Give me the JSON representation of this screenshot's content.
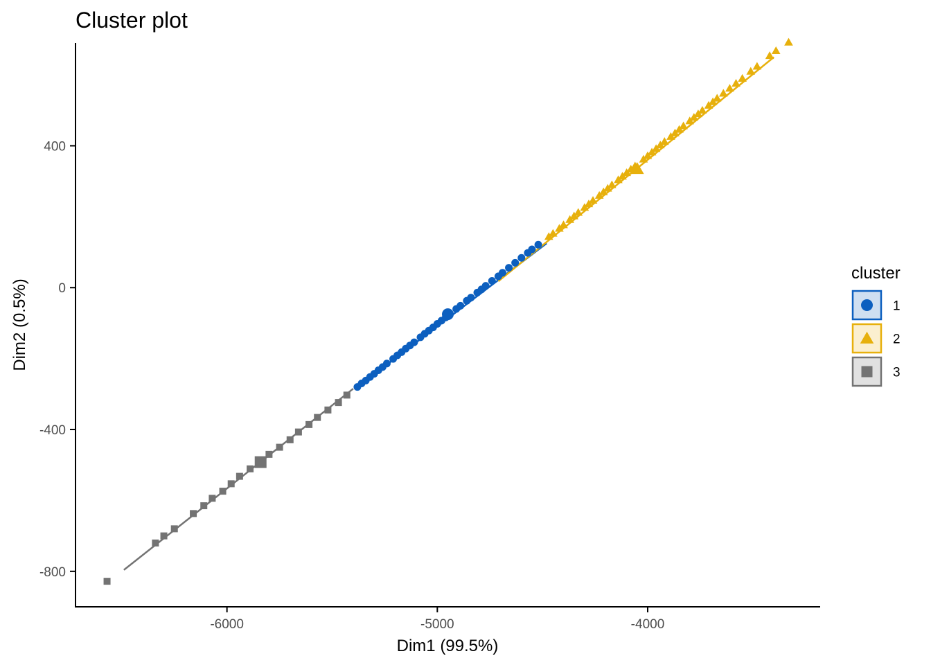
{
  "chart_data": {
    "type": "scatter",
    "title": "Cluster plot",
    "xlabel": "Dim1 (99.5%)",
    "ylabel": "Dim2 (0.5%)",
    "xlim": [
      -6720,
      -3180
    ],
    "ylim": [
      -900,
      690
    ],
    "x_ticks": [
      -6000,
      -5000,
      -4000
    ],
    "x_tick_labels": [
      "-6000",
      "-5000",
      "-4000"
    ],
    "y_ticks": [
      -800,
      -400,
      0,
      400
    ],
    "y_tick_labels": [
      "-800",
      "-400",
      "0",
      "400"
    ],
    "grid": false,
    "legend": {
      "title": "cluster",
      "position": "right"
    },
    "series": [
      {
        "name": "1",
        "color": "#0c5fbf",
        "fill": "#cfdff1",
        "shape": "circle",
        "centroid": [
          -4950,
          -75
        ],
        "fit_segment": [
          [
            -5390,
            -285
          ],
          [
            -4480,
            125
          ]
        ],
        "x": [
          -5380,
          -5360,
          -5340,
          -5320,
          -5300,
          -5280,
          -5260,
          -5240,
          -5210,
          -5190,
          -5170,
          -5150,
          -5130,
          -5110,
          -5080,
          -5060,
          -5040,
          -5020,
          -5000,
          -4980,
          -4960,
          -4940,
          -4910,
          -4890,
          -4860,
          -4840,
          -4810,
          -4790,
          -4770,
          -4740,
          -4710,
          -4690,
          -4660,
          -4630,
          -4600,
          -4570,
          -4550,
          -4520
        ],
        "y": [
          -280,
          -270,
          -262,
          -252,
          -243,
          -233,
          -224,
          -214,
          -201,
          -191,
          -182,
          -172,
          -163,
          -154,
          -140,
          -130,
          -121,
          -112,
          -102,
          -93,
          -84,
          -74,
          -60,
          -51,
          -37,
          -28,
          -14,
          -5,
          5,
          19,
          32,
          42,
          56,
          70,
          84,
          98,
          108,
          121
        ]
      },
      {
        "name": "2",
        "color": "#e7b00c",
        "fill": "#fbefcf",
        "shape": "triangle",
        "centroid": [
          -4050,
          335
        ],
        "fit_segment": [
          [
            -4710,
            18
          ],
          [
            -3400,
            650
          ]
        ],
        "x": [
          -4470,
          -4450,
          -4420,
          -4400,
          -4370,
          -4350,
          -4330,
          -4300,
          -4280,
          -4260,
          -4230,
          -4210,
          -4190,
          -4170,
          -4140,
          -4120,
          -4100,
          -4080,
          -4060,
          -4020,
          -4000,
          -3980,
          -3960,
          -3940,
          -3920,
          -3890,
          -3870,
          -3850,
          -3830,
          -3800,
          -3780,
          -3760,
          -3740,
          -3710,
          -3690,
          -3670,
          -3640,
          -3610,
          -3580,
          -3550,
          -3510,
          -3480,
          -3420,
          -3390,
          -3330
        ],
        "y": [
          144,
          153,
          167,
          177,
          192,
          202,
          212,
          226,
          236,
          246,
          260,
          270,
          280,
          290,
          304,
          314,
          324,
          334,
          343,
          362,
          372,
          382,
          392,
          402,
          412,
          426,
          436,
          446,
          456,
          470,
          480,
          490,
          500,
          514,
          524,
          534,
          548,
          562,
          576,
          590,
          610,
          624,
          654,
          668,
          692
        ]
      },
      {
        "name": "3",
        "color": "#737373",
        "fill": "#e1e1e1",
        "shape": "square",
        "centroid": [
          -5840,
          -492
        ],
        "fit_segment": [
          [
            -6490,
            -796
          ],
          [
            -5400,
            -285
          ]
        ],
        "x": [
          -6570,
          -6340,
          -6300,
          -6250,
          -6160,
          -6110,
          -6070,
          -6020,
          -5980,
          -5940,
          -5890,
          -5840,
          -5800,
          -5750,
          -5700,
          -5660,
          -5610,
          -5570,
          -5520,
          -5470,
          -5430
        ],
        "y": [
          -828,
          -720,
          -700,
          -680,
          -637,
          -615,
          -594,
          -574,
          -553,
          -532,
          -511,
          -492,
          -470,
          -450,
          -429,
          -407,
          -386,
          -366,
          -345,
          -324,
          -303
        ]
      }
    ]
  }
}
